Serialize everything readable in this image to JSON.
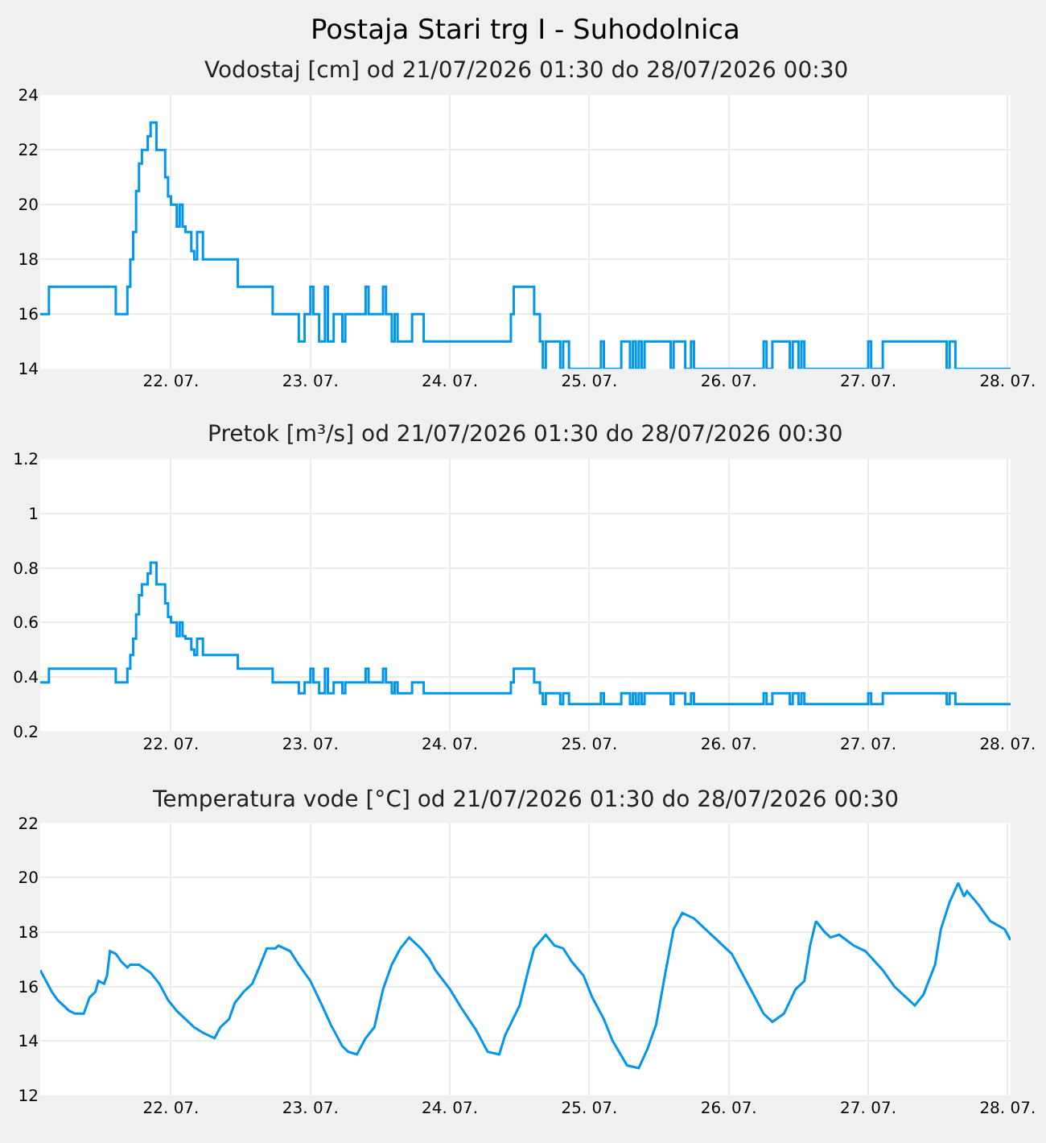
{
  "chart_data": [
    {
      "type": "step",
      "title": "Postaja Stari trg I - Suhodolnica",
      "subtitle": "Vodostaj [cm] od 21/07/2026 01:30 do 28/07/2026 00:30",
      "grid": true,
      "marker": "none",
      "line_style": "solid",
      "xlim": [
        "2026-07-21T01:30",
        "2026-07-28T00:30"
      ],
      "xticks": [
        {
          "value": "2026-07-22",
          "label": "22. 07."
        },
        {
          "value": "2026-07-23",
          "label": "23. 07."
        },
        {
          "value": "2026-07-24",
          "label": "24. 07."
        },
        {
          "value": "2026-07-25",
          "label": "25. 07."
        },
        {
          "value": "2026-07-26",
          "label": "26. 07."
        },
        {
          "value": "2026-07-27",
          "label": "27. 07."
        },
        {
          "value": "2026-07-28",
          "label": "28. 07."
        }
      ],
      "ylim": [
        14,
        24
      ],
      "yticks": [
        14,
        16,
        18,
        20,
        22,
        24
      ],
      "x": [
        "2026-07-21T01:30",
        "2026-07-21T03:00",
        "2026-07-21T14:30",
        "2026-07-21T16:30",
        "2026-07-21T17:00",
        "2026-07-21T17:30",
        "2026-07-21T18:00",
        "2026-07-21T18:30",
        "2026-07-21T19:00",
        "2026-07-21T20:00",
        "2026-07-21T20:30",
        "2026-07-21T21:30",
        "2026-07-21T23:00",
        "2026-07-21T23:30",
        "2026-07-22T00:00",
        "2026-07-22T01:00",
        "2026-07-22T01:30",
        "2026-07-22T02:00",
        "2026-07-22T02:30",
        "2026-07-22T03:30",
        "2026-07-22T04:00",
        "2026-07-22T04:30",
        "2026-07-22T05:30",
        "2026-07-22T11:30",
        "2026-07-22T17:30",
        "2026-07-22T22:00",
        "2026-07-22T23:00",
        "2026-07-23T00:00",
        "2026-07-23T00:30",
        "2026-07-23T01:30",
        "2026-07-23T02:30",
        "2026-07-23T03:00",
        "2026-07-23T04:00",
        "2026-07-23T05:30",
        "2026-07-23T06:00",
        "2026-07-23T09:30",
        "2026-07-23T10:00",
        "2026-07-23T12:30",
        "2026-07-23T13:00",
        "2026-07-23T14:00",
        "2026-07-23T14:30",
        "2026-07-23T15:00",
        "2026-07-23T17:30",
        "2026-07-23T19:30",
        "2026-07-24T10:30",
        "2026-07-24T11:00",
        "2026-07-24T14:30",
        "2026-07-24T15:30",
        "2026-07-24T16:00",
        "2026-07-24T16:30",
        "2026-07-24T19:00",
        "2026-07-24T19:30",
        "2026-07-24T20:30",
        "2026-07-25T02:00",
        "2026-07-25T02:30",
        "2026-07-25T05:30",
        "2026-07-25T07:00",
        "2026-07-25T07:30",
        "2026-07-25T08:00",
        "2026-07-25T08:30",
        "2026-07-25T09:00",
        "2026-07-25T09:30",
        "2026-07-25T14:00",
        "2026-07-25T14:30",
        "2026-07-25T16:30",
        "2026-07-25T17:30",
        "2026-07-25T18:00",
        "2026-07-26T06:00",
        "2026-07-26T06:30",
        "2026-07-26T07:30",
        "2026-07-26T10:30",
        "2026-07-26T11:00",
        "2026-07-26T12:00",
        "2026-07-26T12:30",
        "2026-07-26T13:00",
        "2026-07-27T00:00",
        "2026-07-27T00:30",
        "2026-07-27T02:30",
        "2026-07-27T13:30",
        "2026-07-27T14:00",
        "2026-07-27T15:00",
        "2026-07-28T00:30"
      ],
      "series": [
        {
          "color": "#0096f0",
          "values": [
            16,
            17,
            16,
            17,
            18,
            19,
            20.5,
            21.5,
            22,
            22.5,
            23,
            22,
            21,
            20.3,
            20,
            19.2,
            20,
            19.2,
            19,
            18.3,
            18,
            19,
            18,
            17,
            16,
            15,
            16,
            17,
            16,
            15,
            17,
            15,
            16,
            15,
            16,
            17,
            16,
            17,
            16,
            15,
            16,
            15,
            16,
            15,
            16,
            17,
            16,
            15,
            14,
            15,
            14,
            15,
            14,
            15,
            14,
            15,
            14,
            15,
            14,
            15,
            14,
            15,
            14,
            15,
            14,
            15,
            14,
            15,
            14,
            15,
            14,
            15,
            14,
            15,
            14,
            15,
            14,
            15,
            14,
            15,
            14,
            14
          ]
        }
      ]
    },
    {
      "type": "step",
      "subtitle": "Pretok [m³/s] od 21/07/2026 01:30 do 28/07/2026 00:30",
      "grid": true,
      "marker": "none",
      "line_style": "solid",
      "xlim": [
        "2026-07-21T01:30",
        "2026-07-28T00:30"
      ],
      "xticks": [
        {
          "value": "2026-07-22",
          "label": "22. 07."
        },
        {
          "value": "2026-07-23",
          "label": "23. 07."
        },
        {
          "value": "2026-07-24",
          "label": "24. 07."
        },
        {
          "value": "2026-07-25",
          "label": "25. 07."
        },
        {
          "value": "2026-07-26",
          "label": "26. 07."
        },
        {
          "value": "2026-07-27",
          "label": "27. 07."
        },
        {
          "value": "2026-07-28",
          "label": "28. 07."
        }
      ],
      "ylim": [
        0.2,
        1.2
      ],
      "yticks": [
        0.2,
        0.4,
        0.6,
        0.8,
        1,
        1.2
      ],
      "x": [
        "2026-07-21T01:30",
        "2026-07-21T03:00",
        "2026-07-21T14:30",
        "2026-07-21T16:30",
        "2026-07-21T17:00",
        "2026-07-21T17:30",
        "2026-07-21T18:00",
        "2026-07-21T18:30",
        "2026-07-21T19:00",
        "2026-07-21T20:00",
        "2026-07-21T20:30",
        "2026-07-21T21:30",
        "2026-07-21T23:00",
        "2026-07-21T23:30",
        "2026-07-22T00:00",
        "2026-07-22T01:00",
        "2026-07-22T01:30",
        "2026-07-22T02:00",
        "2026-07-22T02:30",
        "2026-07-22T03:30",
        "2026-07-22T04:00",
        "2026-07-22T04:30",
        "2026-07-22T05:30",
        "2026-07-22T11:30",
        "2026-07-22T17:30",
        "2026-07-22T22:00",
        "2026-07-22T23:00",
        "2026-07-23T00:00",
        "2026-07-23T00:30",
        "2026-07-23T01:30",
        "2026-07-23T02:30",
        "2026-07-23T03:00",
        "2026-07-23T04:00",
        "2026-07-23T05:30",
        "2026-07-23T06:00",
        "2026-07-23T09:30",
        "2026-07-23T10:00",
        "2026-07-23T12:30",
        "2026-07-23T13:00",
        "2026-07-23T14:00",
        "2026-07-23T14:30",
        "2026-07-23T15:00",
        "2026-07-23T17:30",
        "2026-07-23T19:30",
        "2026-07-24T10:30",
        "2026-07-24T11:00",
        "2026-07-24T14:30",
        "2026-07-24T15:30",
        "2026-07-24T16:00",
        "2026-07-24T16:30",
        "2026-07-24T19:00",
        "2026-07-24T19:30",
        "2026-07-24T20:30",
        "2026-07-25T02:00",
        "2026-07-25T02:30",
        "2026-07-25T05:30",
        "2026-07-25T07:00",
        "2026-07-25T07:30",
        "2026-07-25T08:00",
        "2026-07-25T08:30",
        "2026-07-25T09:00",
        "2026-07-25T09:30",
        "2026-07-25T14:00",
        "2026-07-25T14:30",
        "2026-07-25T16:30",
        "2026-07-25T17:30",
        "2026-07-25T18:00",
        "2026-07-26T06:00",
        "2026-07-26T06:30",
        "2026-07-26T07:30",
        "2026-07-26T10:30",
        "2026-07-26T11:00",
        "2026-07-26T12:00",
        "2026-07-26T12:30",
        "2026-07-26T13:00",
        "2026-07-27T00:00",
        "2026-07-27T00:30",
        "2026-07-27T02:30",
        "2026-07-27T13:30",
        "2026-07-27T14:00",
        "2026-07-27T15:00",
        "2026-07-28T00:30"
      ],
      "series": [
        {
          "color": "#0096f0",
          "values": [
            0.38,
            0.43,
            0.38,
            0.43,
            0.48,
            0.54,
            0.63,
            0.7,
            0.74,
            0.78,
            0.82,
            0.74,
            0.67,
            0.62,
            0.6,
            0.55,
            0.6,
            0.55,
            0.54,
            0.5,
            0.48,
            0.54,
            0.48,
            0.43,
            0.38,
            0.34,
            0.38,
            0.43,
            0.38,
            0.34,
            0.43,
            0.34,
            0.38,
            0.34,
            0.38,
            0.43,
            0.38,
            0.43,
            0.38,
            0.34,
            0.38,
            0.34,
            0.38,
            0.34,
            0.38,
            0.43,
            0.38,
            0.34,
            0.3,
            0.34,
            0.3,
            0.34,
            0.3,
            0.34,
            0.3,
            0.34,
            0.3,
            0.34,
            0.3,
            0.34,
            0.3,
            0.34,
            0.3,
            0.34,
            0.3,
            0.34,
            0.3,
            0.34,
            0.3,
            0.34,
            0.3,
            0.34,
            0.3,
            0.34,
            0.3,
            0.34,
            0.3,
            0.34,
            0.3,
            0.34,
            0.3,
            0.3
          ]
        }
      ]
    },
    {
      "type": "line",
      "subtitle": "Temperatura vode [°C] od 21/07/2026 01:30 do 28/07/2026 00:30",
      "grid": true,
      "marker": "none",
      "line_style": "solid",
      "xlim": [
        "2026-07-21T01:30",
        "2026-07-28T00:30"
      ],
      "xticks": [
        {
          "value": "2026-07-22",
          "label": "22. 07."
        },
        {
          "value": "2026-07-23",
          "label": "23. 07."
        },
        {
          "value": "2026-07-24",
          "label": "24. 07."
        },
        {
          "value": "2026-07-25",
          "label": "25. 07."
        },
        {
          "value": "2026-07-26",
          "label": "26. 07."
        },
        {
          "value": "2026-07-27",
          "label": "27. 07."
        },
        {
          "value": "2026-07-28",
          "label": "28. 07."
        }
      ],
      "ylim": [
        12,
        22
      ],
      "yticks": [
        12,
        14,
        16,
        18,
        20,
        22
      ],
      "x": [
        "2026-07-21T01:30",
        "2026-07-21T03:30",
        "2026-07-21T04:30",
        "2026-07-21T06:30",
        "2026-07-21T07:30",
        "2026-07-21T09:00",
        "2026-07-21T10:00",
        "2026-07-21T11:00",
        "2026-07-21T11:30",
        "2026-07-21T12:30",
        "2026-07-21T13:00",
        "2026-07-21T13:30",
        "2026-07-21T14:30",
        "2026-07-21T15:30",
        "2026-07-21T16:30",
        "2026-07-21T17:00",
        "2026-07-21T18:30",
        "2026-07-21T20:30",
        "2026-07-21T22:00",
        "2026-07-21T23:30",
        "2026-07-22T01:00",
        "2026-07-22T02:30",
        "2026-07-22T04:00",
        "2026-07-22T05:30",
        "2026-07-22T07:30",
        "2026-07-22T08:30",
        "2026-07-22T10:00",
        "2026-07-22T11:00",
        "2026-07-22T12:30",
        "2026-07-22T14:00",
        "2026-07-22T15:00",
        "2026-07-22T16:30",
        "2026-07-22T18:00",
        "2026-07-22T18:30",
        "2026-07-22T20:30",
        "2026-07-22T22:00",
        "2026-07-23T00:00",
        "2026-07-23T02:00",
        "2026-07-23T03:30",
        "2026-07-23T05:30",
        "2026-07-23T06:30",
        "2026-07-23T08:00",
        "2026-07-23T09:30",
        "2026-07-23T11:00",
        "2026-07-23T12:30",
        "2026-07-23T14:00",
        "2026-07-23T15:30",
        "2026-07-23T17:00",
        "2026-07-23T19:00",
        "2026-07-23T20:30",
        "2026-07-23T21:30",
        "2026-07-24T00:00",
        "2026-07-24T02:00",
        "2026-07-24T04:30",
        "2026-07-24T06:30",
        "2026-07-24T08:30",
        "2026-07-24T09:30",
        "2026-07-24T12:00",
        "2026-07-24T13:30",
        "2026-07-24T14:30",
        "2026-07-24T16:30",
        "2026-07-24T18:00",
        "2026-07-24T19:30",
        "2026-07-24T21:00",
        "2026-07-24T23:00",
        "2026-07-25T00:30",
        "2026-07-25T02:30",
        "2026-07-25T04:00",
        "2026-07-25T06:30",
        "2026-07-25T08:30",
        "2026-07-25T10:00",
        "2026-07-25T11:30",
        "2026-07-25T13:00",
        "2026-07-25T14:30",
        "2026-07-25T16:00",
        "2026-07-25T18:00",
        "2026-07-25T19:30",
        "2026-07-25T22:30",
        "2026-07-26T00:30",
        "2026-07-26T03:00",
        "2026-07-26T04:30",
        "2026-07-26T06:00",
        "2026-07-26T07:30",
        "2026-07-26T09:30",
        "2026-07-26T11:30",
        "2026-07-26T13:00",
        "2026-07-26T14:00",
        "2026-07-26T15:00",
        "2026-07-26T16:30",
        "2026-07-26T17:30",
        "2026-07-26T19:00",
        "2026-07-26T21:30",
        "2026-07-26T23:30",
        "2026-07-27T02:30",
        "2026-07-27T04:30",
        "2026-07-27T07:00",
        "2026-07-27T08:00",
        "2026-07-27T09:30",
        "2026-07-27T11:30",
        "2026-07-27T12:30",
        "2026-07-27T14:00",
        "2026-07-27T15:30",
        "2026-07-27T16:30",
        "2026-07-27T17:00",
        "2026-07-27T19:00",
        "2026-07-27T21:00",
        "2026-07-27T23:30",
        "2026-07-28T00:30"
      ],
      "series": [
        {
          "color": "#0096f0",
          "values": [
            16.6,
            15.8,
            15.5,
            15.1,
            15.0,
            15.0,
            15.6,
            15.8,
            16.2,
            16.1,
            16.4,
            17.3,
            17.2,
            16.9,
            16.7,
            16.8,
            16.8,
            16.5,
            16.1,
            15.5,
            15.1,
            14.8,
            14.5,
            14.3,
            14.1,
            14.5,
            14.8,
            15.4,
            15.8,
            16.1,
            16.6,
            17.4,
            17.4,
            17.5,
            17.3,
            16.8,
            16.2,
            15.3,
            14.6,
            13.8,
            13.6,
            13.5,
            14.1,
            14.5,
            15.9,
            16.8,
            17.4,
            17.8,
            17.4,
            17.0,
            16.6,
            15.9,
            15.2,
            14.4,
            13.6,
            13.5,
            14.2,
            15.3,
            16.6,
            17.4,
            17.9,
            17.5,
            17.4,
            16.9,
            16.4,
            15.6,
            14.8,
            14.0,
            13.1,
            13.0,
            13.7,
            14.6,
            16.4,
            18.1,
            18.7,
            18.5,
            18.2,
            17.6,
            17.2,
            16.2,
            15.6,
            15.0,
            14.7,
            15.0,
            15.9,
            16.2,
            17.5,
            18.4,
            18.0,
            17.8,
            17.9,
            17.5,
            17.3,
            16.6,
            16.0,
            15.5,
            15.3,
            15.7,
            16.8,
            18.1,
            19.1,
            19.8,
            19.3,
            19.5,
            19.0,
            18.4,
            18.1,
            17.7
          ]
        }
      ]
    }
  ]
}
